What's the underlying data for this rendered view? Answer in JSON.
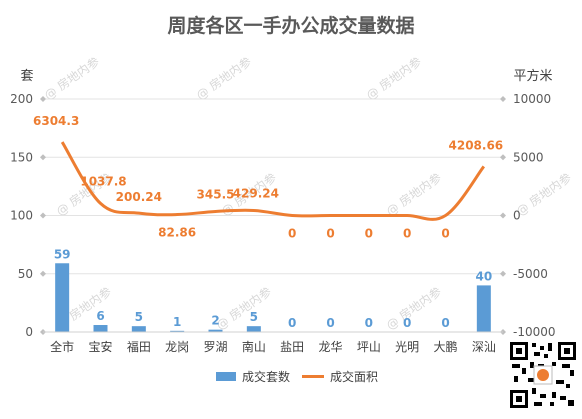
{
  "chart_data": {
    "type": "bar+line",
    "title": "周度各区一手办公成交量数据",
    "watermark": "@ 房地内参",
    "left_axis": {
      "unit": "套",
      "ylim": [
        0,
        200
      ],
      "ticks": [
        0,
        50,
        100,
        150,
        200
      ]
    },
    "right_axis": {
      "unit": "平方米",
      "ylim": [
        -10000,
        10000
      ],
      "ticks": [
        -10000,
        -5000,
        0,
        5000,
        10000
      ]
    },
    "categories": [
      "全市",
      "宝安",
      "福田",
      "龙岗",
      "罗湖",
      "南山",
      "盐田",
      "龙华",
      "坪山",
      "光明",
      "大鹏",
      "深汕"
    ],
    "series": [
      {
        "name": "成交套数",
        "type": "bar",
        "axis": "left",
        "color": "#5b9bd5",
        "values": [
          59,
          6,
          5,
          1,
          2,
          5,
          0,
          0,
          0,
          0,
          0,
          40
        ],
        "labels": [
          "59",
          "6",
          "5",
          "1",
          "2",
          "5",
          "0",
          "0",
          "0",
          "0",
          "0",
          "40"
        ]
      },
      {
        "name": "成交面积",
        "type": "line",
        "axis": "right",
        "color": "#ed7d31",
        "values": [
          6304.3,
          1037.8,
          200.24,
          82.86,
          345.5,
          429.24,
          0,
          0,
          0,
          0,
          0,
          4208.66
        ],
        "labels": [
          "6304.3",
          "1037.8",
          "200.24",
          "82.86",
          "345.5",
          "429.24",
          "0",
          "0",
          "0",
          "0",
          "0",
          "4208.66"
        ]
      }
    ],
    "grid": true,
    "legend_position": "bottom"
  }
}
